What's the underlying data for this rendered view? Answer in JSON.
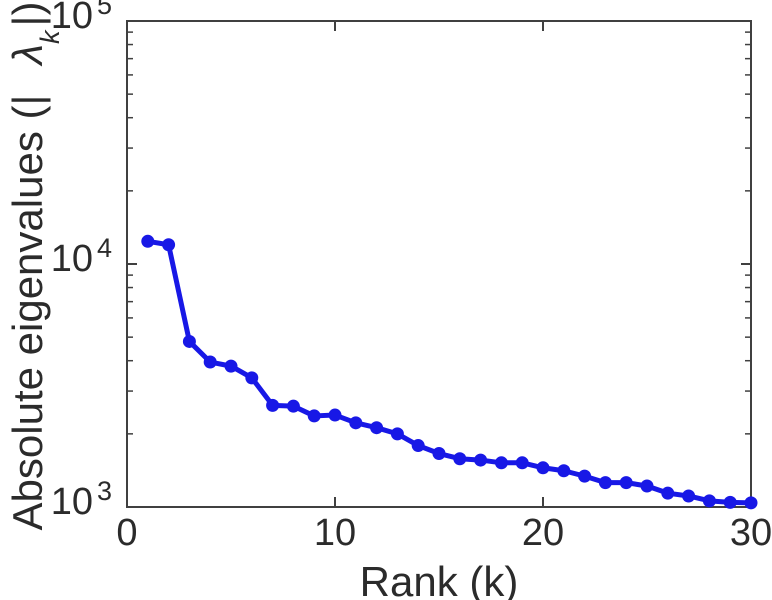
{
  "figure": {
    "background": "#ffffff",
    "xlabel": "Rank (k)",
    "ylabel_prefix": "Absolute eigenvalues (|",
    "ylabel_symbol": "λ",
    "ylabel_subscript": "k",
    "ylabel_suffix": "|)"
  },
  "chart_data": {
    "type": "line",
    "title": "",
    "xlabel": "Rank (k)",
    "ylabel": "Absolute eigenvalues (|λ_k|)",
    "yscale": "log",
    "xlim": [
      0,
      30
    ],
    "ylim": [
      1000,
      100000
    ],
    "x_ticks": [
      0,
      10,
      20,
      30
    ],
    "y_tick_base": "10",
    "y_tick_exponents": [
      3,
      4,
      5
    ],
    "grid": false,
    "legend": null,
    "line_color": "#1818e6",
    "marker": "filled-circle",
    "axis_color": "#404040",
    "x": [
      1,
      2,
      3,
      4,
      5,
      6,
      7,
      8,
      9,
      10,
      11,
      12,
      13,
      14,
      15,
      16,
      17,
      18,
      19,
      20,
      21,
      22,
      23,
      24,
      25,
      26,
      27,
      28,
      29,
      30
    ],
    "series": [
      {
        "name": "absolute eigenvalues",
        "values": [
          12400,
          12000,
          4800,
          3950,
          3800,
          3400,
          2620,
          2600,
          2370,
          2390,
          2220,
          2120,
          2000,
          1790,
          1660,
          1580,
          1560,
          1520,
          1520,
          1450,
          1410,
          1340,
          1260,
          1260,
          1220,
          1140,
          1110,
          1060,
          1045,
          1040
        ]
      }
    ]
  }
}
